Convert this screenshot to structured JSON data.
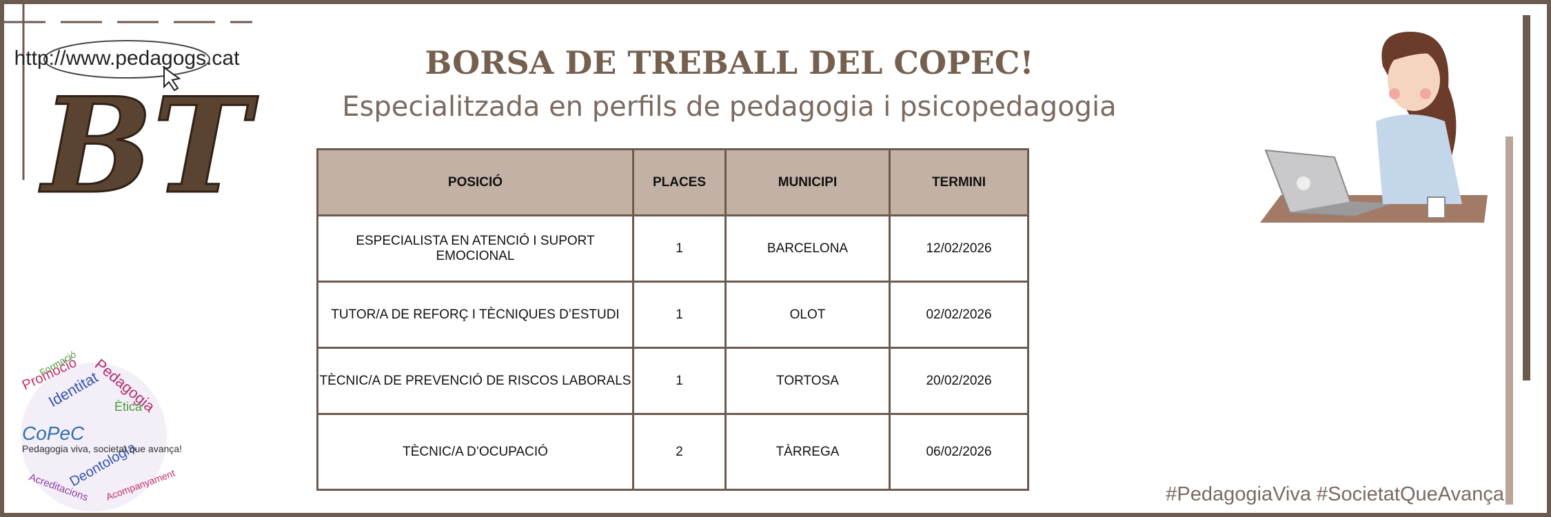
{
  "logo": {
    "url": "http://www.pedagogs.cat",
    "initials": "BT"
  },
  "header": {
    "title": "BORSA DE TREBALL DEL COPEC!",
    "subtitle": "Especialitzada en perfils de pedagogia i psicopedagogia"
  },
  "table": {
    "columns": [
      "POSICIÓ",
      "PLACES",
      "MUNICIPI",
      "TERMINI"
    ],
    "rows": [
      [
        "ESPECIALISTA EN ATENCIÓ I SUPORT EMOCIONAL",
        "1",
        "BARCELONA",
        "12/02/2026"
      ],
      [
        "TUTOR/A DE REFORÇ I TÈCNIQUES D’ESTUDI",
        "1",
        "OLOT",
        "02/02/2026"
      ],
      [
        "TÈCNIC/A DE PREVENCIÓ DE RISCOS LABORALS",
        "1",
        "TORTOSA",
        "20/02/2026"
      ],
      [
        "TÈCNIC/A D’OCUPACIÓ",
        "2",
        "TÀRREGA",
        "06/02/2026"
      ]
    ]
  },
  "copec": {
    "brand": "CoPeC",
    "slogan": "Pedagogia viva, societat que avança!",
    "words": [
      "Promoció",
      "Identitat",
      "Pedagogia",
      "Ètica",
      "Deontologia",
      "Acreditacions",
      "Formació",
      "Acompanyament"
    ]
  },
  "footer": {
    "hashtags": "#PedagogiaViva #SocietatQueAvança"
  }
}
